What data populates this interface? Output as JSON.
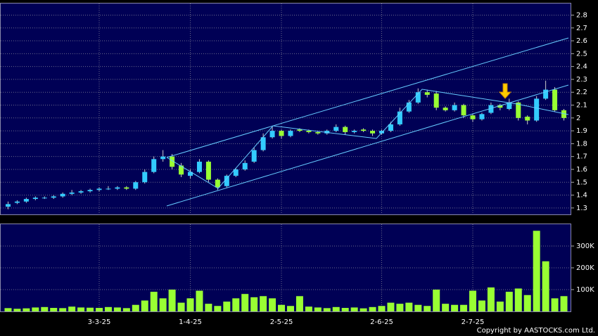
{
  "chart_data": [
    {
      "type": "candlestick",
      "up_color": "#33ccff",
      "down_color": "#99ff33",
      "wick_color": "#cccccc",
      "ylim": [
        1.25,
        2.89
      ],
      "yticks": [
        1.3,
        1.4,
        1.5,
        1.6,
        1.7,
        1.8,
        1.9,
        2,
        2.1,
        2.2,
        2.3,
        2.4,
        2.5,
        2.6,
        2.7,
        2.8
      ],
      "grid": true,
      "open": [
        1.31,
        1.34,
        1.35,
        1.37,
        1.38,
        1.38,
        1.39,
        1.41,
        1.42,
        1.43,
        1.44,
        1.45,
        1.45,
        1.46,
        1.45,
        1.5,
        1.58,
        1.68,
        1.7,
        1.63,
        1.55,
        1.58,
        1.66,
        1.52,
        1.47,
        1.55,
        1.6,
        1.66,
        1.75,
        1.85,
        1.9,
        1.86,
        1.91,
        1.9,
        1.89,
        1.88,
        1.9,
        1.93,
        1.89,
        1.91,
        1.9,
        1.88,
        1.9,
        1.95,
        2.05,
        2.12,
        2.2,
        2.19,
        2.08,
        2.06,
        2.1,
        2.02,
        1.99,
        2.04,
        2.1,
        2.07,
        2.12,
        2.01,
        1.98,
        2.15,
        2.22,
        2.06
      ],
      "high": [
        1.35,
        1.36,
        1.38,
        1.39,
        1.39,
        1.4,
        1.42,
        1.44,
        1.44,
        1.45,
        1.46,
        1.47,
        1.47,
        1.47,
        1.51,
        1.6,
        1.7,
        1.75,
        1.72,
        1.65,
        1.6,
        1.68,
        1.67,
        1.53,
        1.56,
        1.61,
        1.67,
        1.77,
        1.88,
        1.93,
        1.91,
        1.91,
        1.92,
        1.91,
        1.9,
        1.91,
        1.95,
        1.94,
        1.91,
        1.92,
        1.91,
        1.91,
        1.97,
        2.08,
        2.14,
        2.23,
        2.22,
        2.21,
        2.09,
        2.12,
        2.11,
        2.03,
        2.04,
        2.12,
        2.11,
        2.15,
        2.13,
        2.02,
        2.17,
        2.29,
        2.24,
        2.07
      ],
      "low": [
        1.29,
        1.33,
        1.34,
        1.36,
        1.37,
        1.37,
        1.38,
        1.4,
        1.41,
        1.42,
        1.43,
        1.44,
        1.44,
        1.44,
        1.44,
        1.49,
        1.57,
        1.66,
        1.6,
        1.54,
        1.53,
        1.57,
        1.5,
        1.44,
        1.46,
        1.54,
        1.59,
        1.65,
        1.74,
        1.84,
        1.84,
        1.85,
        1.89,
        1.88,
        1.87,
        1.87,
        1.89,
        1.87,
        1.88,
        1.89,
        1.86,
        1.87,
        1.89,
        1.94,
        2.04,
        2.11,
        2.16,
        2.06,
        2.05,
        2.05,
        2.0,
        1.97,
        1.98,
        2.03,
        2.06,
        2.06,
        1.98,
        1.95,
        1.97,
        2.14,
        2.05,
        1.98
      ],
      "close": [
        1.33,
        1.35,
        1.37,
        1.38,
        1.38,
        1.39,
        1.41,
        1.42,
        1.43,
        1.44,
        1.45,
        1.45,
        1.46,
        1.45,
        1.5,
        1.58,
        1.68,
        1.7,
        1.62,
        1.56,
        1.58,
        1.66,
        1.52,
        1.46,
        1.55,
        1.6,
        1.65,
        1.75,
        1.85,
        1.9,
        1.86,
        1.9,
        1.9,
        1.89,
        1.88,
        1.9,
        1.93,
        1.89,
        1.9,
        1.9,
        1.88,
        1.9,
        1.95,
        2.05,
        2.12,
        2.2,
        2.18,
        2.08,
        2.06,
        2.1,
        2.02,
        1.99,
        2.03,
        2.1,
        2.08,
        2.12,
        2.0,
        1.98,
        2.15,
        2.22,
        2.06,
        2.0
      ]
    },
    {
      "type": "bar",
      "color": "#99ff33",
      "categories": [
        null,
        null,
        null,
        null,
        null,
        null,
        null,
        null,
        null,
        null,
        "3-3-25",
        null,
        null,
        null,
        null,
        null,
        null,
        null,
        null,
        null,
        "1-4-25",
        null,
        null,
        null,
        null,
        null,
        null,
        null,
        null,
        null,
        "2-5-25",
        null,
        null,
        null,
        null,
        null,
        null,
        null,
        null,
        null,
        null,
        "2-6-25",
        null,
        null,
        null,
        null,
        null,
        null,
        null,
        null,
        null,
        "2-7-25",
        null,
        null,
        null,
        null,
        null,
        null,
        null,
        null,
        null,
        null
      ],
      "values": [
        15000,
        12000,
        14000,
        18000,
        20000,
        16000,
        15000,
        22000,
        18000,
        17000,
        16000,
        20000,
        18000,
        15000,
        30000,
        50000,
        90000,
        60000,
        100000,
        40000,
        60000,
        95000,
        35000,
        25000,
        45000,
        60000,
        80000,
        65000,
        70000,
        60000,
        30000,
        25000,
        70000,
        22000,
        18000,
        15000,
        20000,
        16000,
        18000,
        14000,
        20000,
        25000,
        40000,
        35000,
        40000,
        30000,
        25000,
        100000,
        35000,
        30000,
        30000,
        95000,
        50000,
        110000,
        45000,
        90000,
        105000,
        75000,
        370000,
        230000,
        60000,
        70000
      ],
      "ylim": [
        0,
        400000
      ],
      "yticks": [
        {
          "value": 100000,
          "label": "100K"
        },
        {
          "value": 200000,
          "label": "200K"
        },
        {
          "value": 300000,
          "label": "300K"
        }
      ],
      "grid": true
    },
    {
      "type": "note",
      "text": "Copyright by AASTOCKS.com Ltd."
    }
  ]
}
